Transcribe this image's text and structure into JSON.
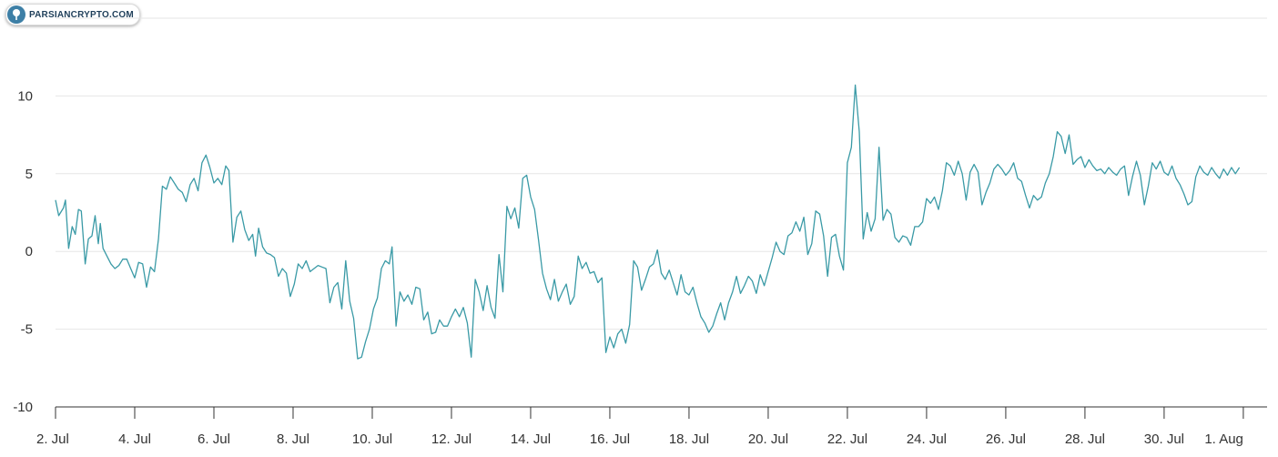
{
  "logo": {
    "text": "PARSIANCRYPTO.COM",
    "icon": "tree-icon"
  },
  "chart_data": {
    "type": "line",
    "title": "",
    "xlabel": "",
    "ylabel": "",
    "ylim": [
      -10,
      15
    ],
    "xlim": [
      0,
      30.6
    ],
    "x_start_label": "2. Jul",
    "y_ticks": [
      -10,
      -5,
      0,
      5,
      10
    ],
    "x_tick_positions": [
      0,
      2,
      4,
      6,
      8,
      10,
      12,
      14,
      16,
      18,
      20,
      22,
      24,
      26,
      28,
      30
    ],
    "x_tick_labels": [
      "2. Jul",
      "4. Jul",
      "6. Jul",
      "8. Jul",
      "10. Jul",
      "12. Jul",
      "14. Jul",
      "16. Jul",
      "18. Jul",
      "20. Jul",
      "22. Jul",
      "24. Jul",
      "26. Jul",
      "28. Jul",
      "30. Jul",
      "1. Aug"
    ],
    "grid": true,
    "legend": "none",
    "colors": {
      "line": "#3a9aa6",
      "grid": "#e6e6e6",
      "axis": "#333333"
    },
    "series": [
      {
        "values": [
          [
            0.0,
            3.3
          ],
          [
            0.08,
            2.3
          ],
          [
            0.2,
            2.8
          ],
          [
            0.25,
            3.3
          ],
          [
            0.33,
            0.2
          ],
          [
            0.42,
            1.6
          ],
          [
            0.5,
            1.1
          ],
          [
            0.58,
            2.7
          ],
          [
            0.65,
            2.6
          ],
          [
            0.75,
            -0.8
          ],
          [
            0.83,
            0.8
          ],
          [
            0.92,
            1.0
          ],
          [
            1.0,
            2.3
          ],
          [
            1.08,
            0.5
          ],
          [
            1.13,
            1.8
          ],
          [
            1.2,
            0.2
          ],
          [
            1.3,
            -0.3
          ],
          [
            1.4,
            -0.8
          ],
          [
            1.5,
            -1.1
          ],
          [
            1.6,
            -0.9
          ],
          [
            1.7,
            -0.5
          ],
          [
            1.8,
            -0.5
          ],
          [
            1.9,
            -1.1
          ],
          [
            2.0,
            -1.7
          ],
          [
            2.1,
            -0.7
          ],
          [
            2.2,
            -0.8
          ],
          [
            2.3,
            -2.3
          ],
          [
            2.4,
            -1.0
          ],
          [
            2.5,
            -1.3
          ],
          [
            2.6,
            0.8
          ],
          [
            2.7,
            4.2
          ],
          [
            2.8,
            4.0
          ],
          [
            2.9,
            4.8
          ],
          [
            3.0,
            4.4
          ],
          [
            3.1,
            4.0
          ],
          [
            3.2,
            3.8
          ],
          [
            3.3,
            3.2
          ],
          [
            3.4,
            4.3
          ],
          [
            3.5,
            4.7
          ],
          [
            3.6,
            3.9
          ],
          [
            3.7,
            5.7
          ],
          [
            3.8,
            6.2
          ],
          [
            3.9,
            5.4
          ],
          [
            4.0,
            4.4
          ],
          [
            4.1,
            4.7
          ],
          [
            4.2,
            4.3
          ],
          [
            4.3,
            5.5
          ],
          [
            4.38,
            5.2
          ],
          [
            4.48,
            0.6
          ],
          [
            4.58,
            2.2
          ],
          [
            4.68,
            2.6
          ],
          [
            4.78,
            1.4
          ],
          [
            4.88,
            0.7
          ],
          [
            4.98,
            1.1
          ],
          [
            5.05,
            -0.3
          ],
          [
            5.13,
            1.5
          ],
          [
            5.23,
            0.3
          ],
          [
            5.33,
            -0.1
          ],
          [
            5.43,
            -0.2
          ],
          [
            5.53,
            -0.4
          ],
          [
            5.63,
            -1.6
          ],
          [
            5.73,
            -1.1
          ],
          [
            5.83,
            -1.4
          ],
          [
            5.93,
            -2.9
          ],
          [
            6.03,
            -2.1
          ],
          [
            6.13,
            -0.8
          ],
          [
            6.23,
            -1.1
          ],
          [
            6.33,
            -0.6
          ],
          [
            6.43,
            -1.3
          ],
          [
            6.53,
            -1.1
          ],
          [
            6.63,
            -0.9
          ],
          [
            6.73,
            -1.0
          ],
          [
            6.83,
            -1.1
          ],
          [
            6.93,
            -3.3
          ],
          [
            7.03,
            -2.3
          ],
          [
            7.13,
            -2.0
          ],
          [
            7.23,
            -3.7
          ],
          [
            7.33,
            -0.6
          ],
          [
            7.43,
            -3.2
          ],
          [
            7.53,
            -4.3
          ],
          [
            7.63,
            -6.9
          ],
          [
            7.73,
            -6.8
          ],
          [
            7.83,
            -5.8
          ],
          [
            7.93,
            -5.0
          ],
          [
            8.03,
            -3.7
          ],
          [
            8.13,
            -3.0
          ],
          [
            8.23,
            -1.1
          ],
          [
            8.33,
            -0.6
          ],
          [
            8.43,
            -0.8
          ],
          [
            8.5,
            0.3
          ],
          [
            8.6,
            -4.8
          ],
          [
            8.7,
            -2.6
          ],
          [
            8.8,
            -3.2
          ],
          [
            8.9,
            -2.8
          ],
          [
            9.0,
            -3.4
          ],
          [
            9.1,
            -2.3
          ],
          [
            9.2,
            -2.4
          ],
          [
            9.3,
            -4.4
          ],
          [
            9.4,
            -3.9
          ],
          [
            9.5,
            -5.3
          ],
          [
            9.6,
            -5.2
          ],
          [
            9.7,
            -4.4
          ],
          [
            9.8,
            -4.8
          ],
          [
            9.9,
            -4.8
          ],
          [
            10.0,
            -4.2
          ],
          [
            10.1,
            -3.7
          ],
          [
            10.2,
            -4.2
          ],
          [
            10.3,
            -3.6
          ],
          [
            10.4,
            -4.6
          ],
          [
            10.5,
            -6.8
          ],
          [
            10.6,
            -1.8
          ],
          [
            10.7,
            -2.6
          ],
          [
            10.8,
            -3.8
          ],
          [
            10.9,
            -2.2
          ],
          [
            11.0,
            -3.6
          ],
          [
            11.1,
            -4.3
          ],
          [
            11.2,
            -0.2
          ],
          [
            11.3,
            -2.6
          ],
          [
            11.4,
            2.9
          ],
          [
            11.5,
            2.1
          ],
          [
            11.6,
            2.8
          ],
          [
            11.7,
            1.5
          ],
          [
            11.8,
            4.7
          ],
          [
            11.9,
            4.9
          ],
          [
            12.0,
            3.5
          ],
          [
            12.1,
            2.7
          ],
          [
            12.2,
            0.7
          ],
          [
            12.3,
            -1.4
          ],
          [
            12.4,
            -2.4
          ],
          [
            12.5,
            -3.1
          ],
          [
            12.6,
            -1.8
          ],
          [
            12.7,
            -3.2
          ],
          [
            12.8,
            -2.6
          ],
          [
            12.9,
            -2.1
          ],
          [
            13.0,
            -3.4
          ],
          [
            13.1,
            -2.9
          ],
          [
            13.2,
            -0.3
          ],
          [
            13.3,
            -1.1
          ],
          [
            13.4,
            -0.7
          ],
          [
            13.5,
            -1.4
          ],
          [
            13.6,
            -1.3
          ],
          [
            13.7,
            -2.0
          ],
          [
            13.8,
            -1.7
          ],
          [
            13.9,
            -6.5
          ],
          [
            14.0,
            -5.5
          ],
          [
            14.1,
            -6.2
          ],
          [
            14.2,
            -5.3
          ],
          [
            14.3,
            -5.0
          ],
          [
            14.4,
            -5.9
          ],
          [
            14.5,
            -4.7
          ],
          [
            14.6,
            -0.6
          ],
          [
            14.7,
            -1.0
          ],
          [
            14.8,
            -2.5
          ],
          [
            14.9,
            -1.8
          ],
          [
            15.0,
            -1.0
          ],
          [
            15.1,
            -0.8
          ],
          [
            15.2,
            0.1
          ],
          [
            15.3,
            -1.4
          ],
          [
            15.4,
            -1.8
          ],
          [
            15.5,
            -1.2
          ],
          [
            15.6,
            -2.0
          ],
          [
            15.7,
            -2.8
          ],
          [
            15.8,
            -1.5
          ],
          [
            15.9,
            -2.6
          ],
          [
            16.0,
            -2.8
          ],
          [
            16.1,
            -2.3
          ],
          [
            16.2,
            -3.3
          ],
          [
            16.3,
            -4.2
          ],
          [
            16.4,
            -4.6
          ],
          [
            16.5,
            -5.2
          ],
          [
            16.6,
            -4.8
          ],
          [
            16.7,
            -4.0
          ],
          [
            16.8,
            -3.3
          ],
          [
            16.9,
            -4.4
          ],
          [
            17.0,
            -3.3
          ],
          [
            17.1,
            -2.6
          ],
          [
            17.2,
            -1.6
          ],
          [
            17.3,
            -2.7
          ],
          [
            17.4,
            -2.2
          ],
          [
            17.5,
            -1.6
          ],
          [
            17.6,
            -1.9
          ],
          [
            17.7,
            -2.7
          ],
          [
            17.8,
            -1.5
          ],
          [
            17.9,
            -2.2
          ],
          [
            18.0,
            -1.3
          ],
          [
            18.1,
            -0.4
          ],
          [
            18.2,
            0.6
          ],
          [
            18.3,
            0.0
          ],
          [
            18.4,
            -0.2
          ],
          [
            18.5,
            1.0
          ],
          [
            18.6,
            1.2
          ],
          [
            18.7,
            1.9
          ],
          [
            18.8,
            1.3
          ],
          [
            18.9,
            2.2
          ],
          [
            19.0,
            -0.2
          ],
          [
            19.1,
            0.5
          ],
          [
            19.2,
            2.6
          ],
          [
            19.3,
            2.4
          ],
          [
            19.4,
            1.0
          ],
          [
            19.5,
            -1.6
          ],
          [
            19.6,
            0.9
          ],
          [
            19.7,
            1.1
          ],
          [
            19.8,
            -0.3
          ],
          [
            19.9,
            -1.2
          ],
          [
            20.0,
            5.7
          ],
          [
            20.1,
            6.7
          ],
          [
            20.2,
            10.7
          ],
          [
            20.3,
            7.7
          ],
          [
            20.4,
            0.8
          ],
          [
            20.5,
            2.5
          ],
          [
            20.6,
            1.3
          ],
          [
            20.7,
            2.1
          ],
          [
            20.8,
            6.7
          ],
          [
            20.9,
            2.0
          ],
          [
            21.0,
            2.7
          ],
          [
            21.1,
            2.4
          ],
          [
            21.2,
            0.9
          ],
          [
            21.3,
            0.6
          ],
          [
            21.4,
            1.0
          ],
          [
            21.5,
            0.9
          ],
          [
            21.6,
            0.4
          ],
          [
            21.7,
            1.6
          ],
          [
            21.8,
            1.6
          ],
          [
            21.9,
            1.9
          ],
          [
            22.0,
            3.4
          ],
          [
            22.1,
            3.1
          ],
          [
            22.2,
            3.5
          ],
          [
            22.3,
            2.7
          ],
          [
            22.4,
            3.9
          ],
          [
            22.5,
            5.7
          ],
          [
            22.6,
            5.5
          ],
          [
            22.7,
            4.9
          ],
          [
            22.8,
            5.8
          ],
          [
            22.9,
            5.0
          ],
          [
            23.0,
            3.3
          ],
          [
            23.1,
            5.1
          ],
          [
            23.2,
            5.6
          ],
          [
            23.3,
            5.1
          ],
          [
            23.4,
            3.0
          ],
          [
            23.5,
            3.8
          ],
          [
            23.6,
            4.4
          ],
          [
            23.7,
            5.3
          ],
          [
            23.8,
            5.6
          ],
          [
            23.9,
            5.3
          ],
          [
            24.0,
            4.9
          ],
          [
            24.1,
            5.2
          ],
          [
            24.2,
            5.7
          ],
          [
            24.3,
            4.7
          ],
          [
            24.4,
            4.5
          ],
          [
            24.5,
            3.6
          ],
          [
            24.6,
            2.8
          ],
          [
            24.7,
            3.6
          ],
          [
            24.8,
            3.3
          ],
          [
            24.9,
            3.5
          ],
          [
            25.0,
            4.4
          ],
          [
            25.1,
            5.0
          ],
          [
            25.2,
            6.1
          ],
          [
            25.3,
            7.7
          ],
          [
            25.4,
            7.4
          ],
          [
            25.5,
            6.3
          ],
          [
            25.6,
            7.5
          ],
          [
            25.7,
            5.6
          ],
          [
            25.8,
            5.9
          ],
          [
            25.9,
            6.1
          ],
          [
            26.0,
            5.4
          ],
          [
            26.1,
            5.9
          ],
          [
            26.2,
            5.5
          ],
          [
            26.3,
            5.2
          ],
          [
            26.4,
            5.3
          ],
          [
            26.5,
            5.0
          ],
          [
            26.6,
            5.4
          ],
          [
            26.7,
            5.1
          ],
          [
            26.8,
            4.9
          ],
          [
            26.9,
            5.3
          ],
          [
            27.0,
            5.5
          ],
          [
            27.1,
            3.6
          ],
          [
            27.2,
            4.8
          ],
          [
            27.3,
            5.8
          ],
          [
            27.4,
            4.9
          ],
          [
            27.5,
            3.0
          ],
          [
            27.6,
            4.2
          ],
          [
            27.7,
            5.7
          ],
          [
            27.8,
            5.3
          ],
          [
            27.9,
            5.8
          ],
          [
            28.0,
            5.1
          ],
          [
            28.1,
            4.9
          ],
          [
            28.2,
            5.5
          ],
          [
            28.3,
            4.7
          ],
          [
            28.4,
            4.3
          ],
          [
            28.5,
            3.7
          ],
          [
            28.6,
            3.0
          ],
          [
            28.7,
            3.2
          ],
          [
            28.8,
            4.8
          ],
          [
            28.9,
            5.5
          ],
          [
            29.0,
            5.1
          ],
          [
            29.1,
            4.9
          ],
          [
            29.2,
            5.4
          ],
          [
            29.3,
            5.0
          ],
          [
            29.4,
            4.7
          ],
          [
            29.5,
            5.3
          ],
          [
            29.6,
            4.9
          ],
          [
            29.7,
            5.4
          ],
          [
            29.8,
            5.0
          ],
          [
            29.9,
            5.4
          ]
        ]
      }
    ]
  }
}
